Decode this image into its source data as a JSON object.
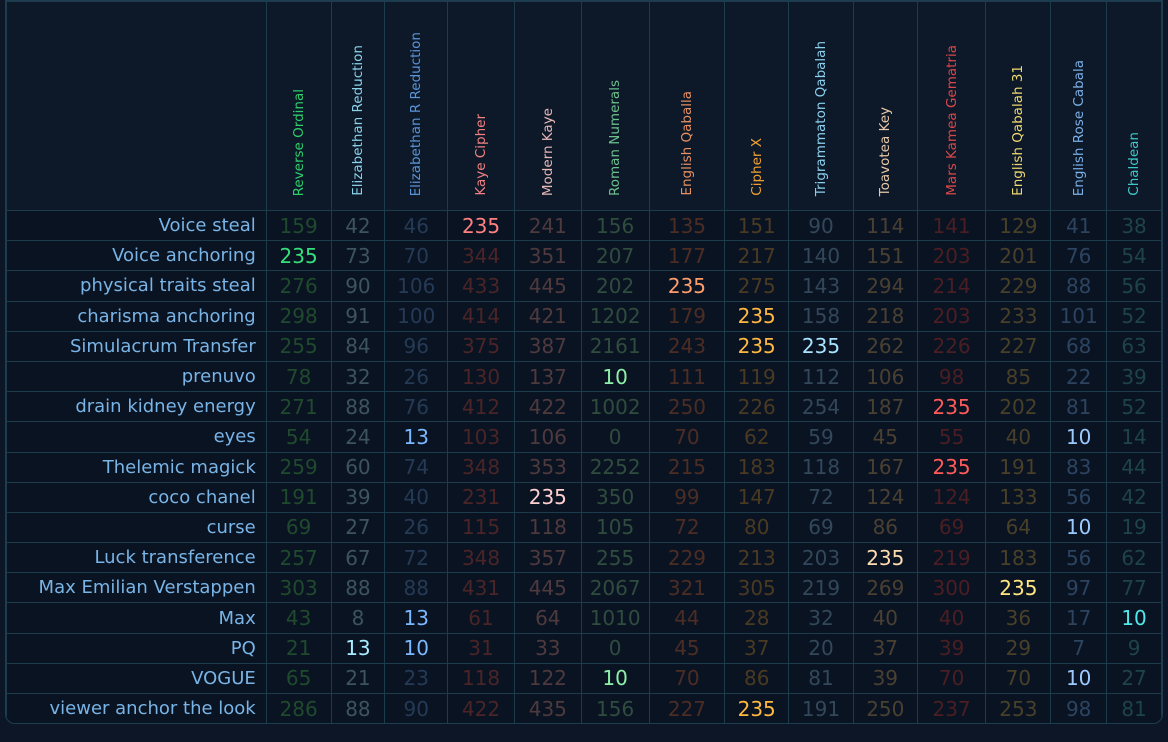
{
  "table": {
    "columns": [
      {
        "name": "Reverse Ordinal",
        "header_color": "#2ecf6a",
        "dim_color": "#1f4a2d",
        "hit_color": "#35e07a"
      },
      {
        "name": "Elizabethan Reduction",
        "header_color": "#8ad2ea",
        "dim_color": "#3d5360",
        "hit_color": "#a8ecff"
      },
      {
        "name": "Elizabethan R Reduction",
        "header_color": "#5a94d8",
        "dim_color": "#253a55",
        "hit_color": "#7ab8ff"
      },
      {
        "name": "Kaye Cipher",
        "header_color": "#f08080",
        "dim_color": "#4a2426",
        "hit_color": "#ff8080"
      },
      {
        "name": "Modern Kaye",
        "header_color": "#e8b8b8",
        "dim_color": "#4e3a3d",
        "hit_color": "#ffcfcf"
      },
      {
        "name": "Roman Numerals",
        "header_color": "#6cc08c",
        "dim_color": "#2f4c3e",
        "hit_color": "#8ef0a8"
      },
      {
        "name": "English Qaballa",
        "header_color": "#e89060",
        "dim_color": "#4c2d24",
        "hit_color": "#ff9e6a"
      },
      {
        "name": "Cipher X",
        "header_color": "#f0a030",
        "dim_color": "#4a3a22",
        "hit_color": "#ffb840"
      },
      {
        "name": "Trigrammaton Qabalah",
        "header_color": "#8cd0f0",
        "dim_color": "#32485a",
        "hit_color": "#a8e4ff"
      },
      {
        "name": "Toavotea Key",
        "header_color": "#e8c8a8",
        "dim_color": "#4a4032",
        "hit_color": "#ffdcb0"
      },
      {
        "name": "Mars Kamea Gematria",
        "header_color": "#d84848",
        "dim_color": "#4a1e22",
        "hit_color": "#ff5a5a"
      },
      {
        "name": "English Qabalah 31",
        "header_color": "#f0d870",
        "dim_color": "#484028",
        "hit_color": "#ffe680"
      },
      {
        "name": "English Rose Cabala",
        "header_color": "#7ab0e8",
        "dim_color": "#2c4460",
        "hit_color": "#9ccaff"
      },
      {
        "name": "Chaldean",
        "header_color": "#40c8c8",
        "dim_color": "#1e4448",
        "hit_color": "#50e8e8"
      }
    ],
    "rows": [
      {
        "label": "Voice steal",
        "values": [
          "159",
          "42",
          "46",
          "235",
          "241",
          "156",
          "135",
          "151",
          "90",
          "114",
          "141",
          "129",
          "41",
          "38"
        ],
        "hits": [
          3
        ]
      },
      {
        "label": "Voice anchoring",
        "values": [
          "235",
          "73",
          "70",
          "344",
          "351",
          "207",
          "177",
          "217",
          "140",
          "151",
          "203",
          "201",
          "76",
          "54"
        ],
        "hits": [
          0
        ]
      },
      {
        "label": "physical traits steal",
        "values": [
          "276",
          "90",
          "106",
          "433",
          "445",
          "202",
          "235",
          "275",
          "143",
          "294",
          "214",
          "229",
          "88",
          "56"
        ],
        "hits": [
          6
        ]
      },
      {
        "label": "charisma anchoring",
        "values": [
          "298",
          "91",
          "100",
          "414",
          "421",
          "1202",
          "179",
          "235",
          "158",
          "218",
          "203",
          "233",
          "101",
          "52"
        ],
        "hits": [
          7
        ]
      },
      {
        "label": "Simulacrum Transfer",
        "values": [
          "255",
          "84",
          "96",
          "375",
          "387",
          "2161",
          "243",
          "235",
          "235",
          "262",
          "226",
          "227",
          "68",
          "63"
        ],
        "hits": [
          7,
          8
        ]
      },
      {
        "label": "prenuvo",
        "values": [
          "78",
          "32",
          "26",
          "130",
          "137",
          "10",
          "111",
          "119",
          "112",
          "106",
          "98",
          "85",
          "22",
          "39"
        ],
        "hits": [
          5
        ]
      },
      {
        "label": "drain kidney energy",
        "values": [
          "271",
          "88",
          "76",
          "412",
          "422",
          "1002",
          "250",
          "226",
          "254",
          "187",
          "235",
          "202",
          "81",
          "52"
        ],
        "hits": [
          10
        ]
      },
      {
        "label": "eyes",
        "values": [
          "54",
          "24",
          "13",
          "103",
          "106",
          "0",
          "70",
          "62",
          "59",
          "45",
          "55",
          "40",
          "10",
          "14"
        ],
        "hits": [
          2,
          12
        ]
      },
      {
        "label": "Thelemic magick",
        "values": [
          "259",
          "60",
          "74",
          "348",
          "353",
          "2252",
          "215",
          "183",
          "118",
          "167",
          "235",
          "191",
          "83",
          "44"
        ],
        "hits": [
          10
        ]
      },
      {
        "label": "coco chanel",
        "values": [
          "191",
          "39",
          "40",
          "231",
          "235",
          "350",
          "99",
          "147",
          "72",
          "124",
          "124",
          "133",
          "56",
          "42"
        ],
        "hits": [
          4
        ]
      },
      {
        "label": "curse",
        "values": [
          "69",
          "27",
          "26",
          "115",
          "118",
          "105",
          "72",
          "80",
          "69",
          "86",
          "69",
          "64",
          "10",
          "19"
        ],
        "hits": [
          12
        ]
      },
      {
        "label": "Luck transference",
        "values": [
          "257",
          "67",
          "72",
          "348",
          "357",
          "255",
          "229",
          "213",
          "203",
          "235",
          "219",
          "183",
          "56",
          "62"
        ],
        "hits": [
          9
        ]
      },
      {
        "label": "Max Emilian Verstappen",
        "values": [
          "303",
          "88",
          "88",
          "431",
          "445",
          "2067",
          "321",
          "305",
          "219",
          "269",
          "300",
          "235",
          "97",
          "77"
        ],
        "hits": [
          11
        ]
      },
      {
        "label": "Max",
        "values": [
          "43",
          "8",
          "13",
          "61",
          "64",
          "1010",
          "44",
          "28",
          "32",
          "40",
          "40",
          "36",
          "17",
          "10"
        ],
        "hits": [
          2,
          13
        ]
      },
      {
        "label": "PQ",
        "values": [
          "21",
          "13",
          "10",
          "31",
          "33",
          "0",
          "45",
          "37",
          "20",
          "37",
          "39",
          "29",
          "7",
          "9"
        ],
        "hits": [
          1,
          2
        ]
      },
      {
        "label": "VOGUE",
        "values": [
          "65",
          "21",
          "23",
          "118",
          "122",
          "10",
          "70",
          "86",
          "81",
          "39",
          "70",
          "70",
          "10",
          "27"
        ],
        "hits": [
          5,
          12
        ]
      },
      {
        "label": "viewer anchor the look",
        "values": [
          "286",
          "88",
          "90",
          "422",
          "435",
          "156",
          "227",
          "235",
          "191",
          "250",
          "237",
          "253",
          "98",
          "81"
        ],
        "hits": [
          7
        ]
      }
    ]
  }
}
